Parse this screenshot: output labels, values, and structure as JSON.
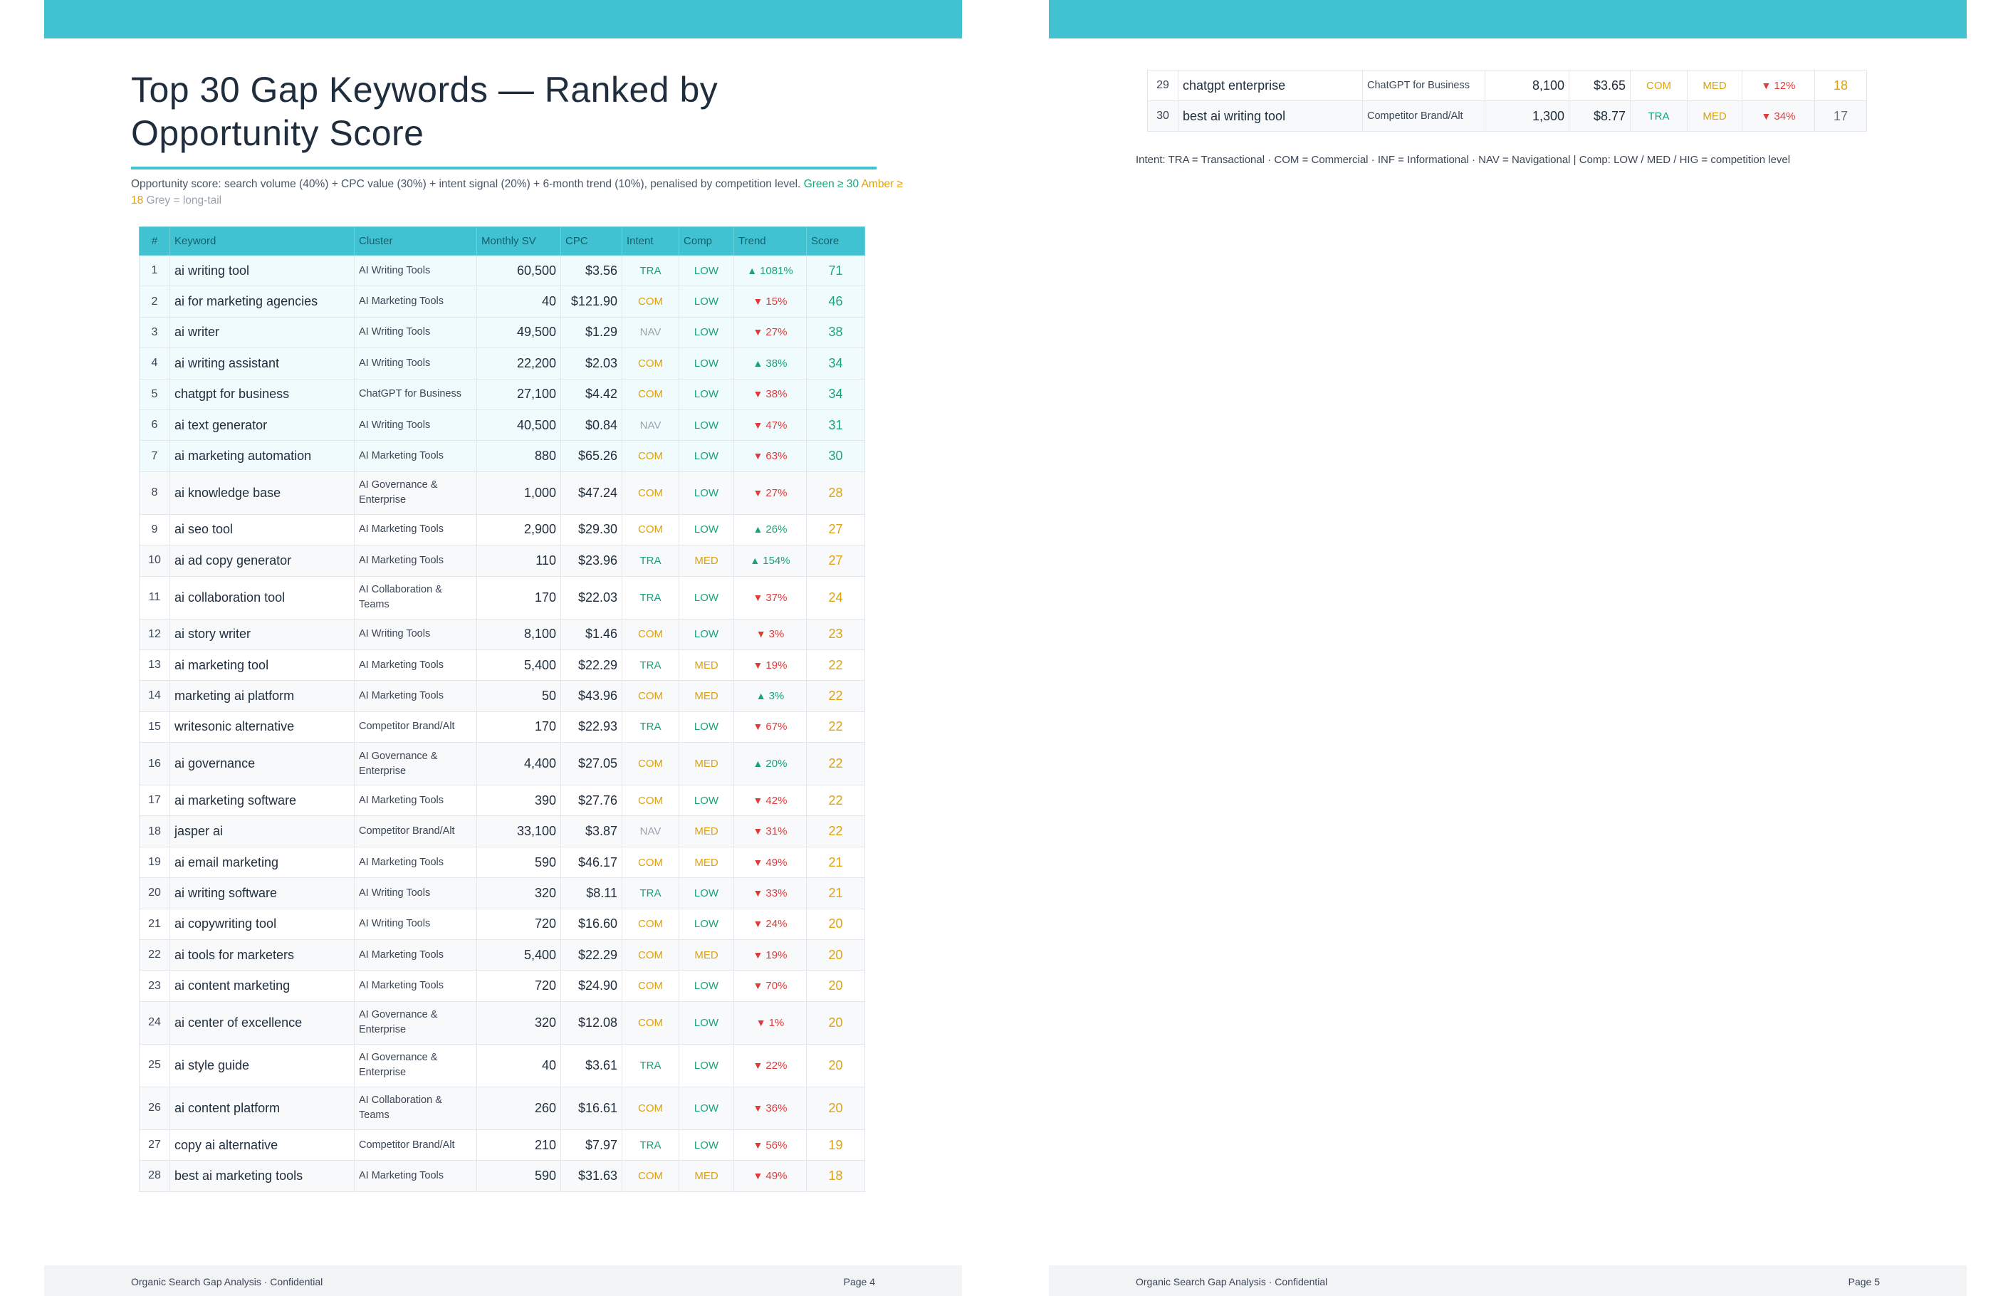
{
  "page4": {
    "title": "Top 30 Gap Keywords — Ranked by Opportunity Score",
    "note": {
      "text": "Opportunity score: search volume (40%) + CPC value (30%) + intent signal (20%) + 6-month trend (10%), penalised by competition level.",
      "green": "Green ≥ 30",
      "amber": "Amber ≥ 18",
      "grey": "Grey = long-tail"
    },
    "footer": {
      "left": "Organic Search Gap Analysis · Confidential",
      "right": "Page 4"
    }
  },
  "page5": {
    "legend": "Intent: TRA = Transactional · COM = Commercial · INF = Informational · NAV = Navigational | Comp: LOW / MED / HIG = competition level",
    "footer": {
      "left": "Organic Search Gap Analysis · Confidential",
      "right": "Page 5"
    }
  },
  "table": {
    "columns": [
      "#",
      "Keyword",
      "Cluster",
      "Monthly SV",
      "CPC",
      "Intent",
      "Comp",
      "Trend",
      "Score"
    ],
    "rows": [
      {
        "n": "1",
        "kw": "ai writing tool",
        "cl": "AI Writing Tools",
        "sv": "60,500",
        "cpc": "$3.56",
        "intent": "TRA",
        "comp": "LOW",
        "dir": "up",
        "trend": "1081%",
        "score": "71",
        "band": "green"
      },
      {
        "n": "2",
        "kw": "ai for marketing agencies",
        "cl": "AI Marketing Tools",
        "sv": "40",
        "cpc": "$121.90",
        "intent": "COM",
        "comp": "LOW",
        "dir": "down",
        "trend": "15%",
        "score": "46",
        "band": "green"
      },
      {
        "n": "3",
        "kw": "ai writer",
        "cl": "AI Writing Tools",
        "sv": "49,500",
        "cpc": "$1.29",
        "intent": "NAV",
        "comp": "LOW",
        "dir": "down",
        "trend": "27%",
        "score": "38",
        "band": "green"
      },
      {
        "n": "4",
        "kw": "ai writing assistant",
        "cl": "AI Writing Tools",
        "sv": "22,200",
        "cpc": "$2.03",
        "intent": "COM",
        "comp": "LOW",
        "dir": "up",
        "trend": "38%",
        "score": "34",
        "band": "green"
      },
      {
        "n": "5",
        "kw": "chatgpt for business",
        "cl": "ChatGPT for Business",
        "sv": "27,100",
        "cpc": "$4.42",
        "intent": "COM",
        "comp": "LOW",
        "dir": "down",
        "trend": "38%",
        "score": "34",
        "band": "green"
      },
      {
        "n": "6",
        "kw": "ai text generator",
        "cl": "AI Writing Tools",
        "sv": "40,500",
        "cpc": "$0.84",
        "intent": "NAV",
        "comp": "LOW",
        "dir": "down",
        "trend": "47%",
        "score": "31",
        "band": "green"
      },
      {
        "n": "7",
        "kw": "ai marketing automation",
        "cl": "AI Marketing Tools",
        "sv": "880",
        "cpc": "$65.26",
        "intent": "COM",
        "comp": "LOW",
        "dir": "down",
        "trend": "63%",
        "score": "30",
        "band": "green"
      },
      {
        "n": "8",
        "kw": "ai knowledge base",
        "cl": "AI Governance & Enterprise",
        "sv": "1,000",
        "cpc": "$47.24",
        "intent": "COM",
        "comp": "LOW",
        "dir": "down",
        "trend": "27%",
        "score": "28",
        "band": "amber"
      },
      {
        "n": "9",
        "kw": "ai seo tool",
        "cl": "AI Marketing Tools",
        "sv": "2,900",
        "cpc": "$29.30",
        "intent": "COM",
        "comp": "LOW",
        "dir": "up",
        "trend": "26%",
        "score": "27",
        "band": "amber"
      },
      {
        "n": "10",
        "kw": "ai ad copy generator",
        "cl": "AI Marketing Tools",
        "sv": "110",
        "cpc": "$23.96",
        "intent": "TRA",
        "comp": "MED",
        "dir": "up",
        "trend": "154%",
        "score": "27",
        "band": "amber"
      },
      {
        "n": "11",
        "kw": "ai collaboration tool",
        "cl": "AI Collaboration & Teams",
        "sv": "170",
        "cpc": "$22.03",
        "intent": "TRA",
        "comp": "LOW",
        "dir": "down",
        "trend": "37%",
        "score": "24",
        "band": "amber"
      },
      {
        "n": "12",
        "kw": "ai story writer",
        "cl": "AI Writing Tools",
        "sv": "8,100",
        "cpc": "$1.46",
        "intent": "COM",
        "comp": "LOW",
        "dir": "down",
        "trend": "3%",
        "score": "23",
        "band": "amber"
      },
      {
        "n": "13",
        "kw": "ai marketing tool",
        "cl": "AI Marketing Tools",
        "sv": "5,400",
        "cpc": "$22.29",
        "intent": "TRA",
        "comp": "MED",
        "dir": "down",
        "trend": "19%",
        "score": "22",
        "band": "amber"
      },
      {
        "n": "14",
        "kw": "marketing ai platform",
        "cl": "AI Marketing Tools",
        "sv": "50",
        "cpc": "$43.96",
        "intent": "COM",
        "comp": "MED",
        "dir": "up",
        "trend": "3%",
        "score": "22",
        "band": "amber"
      },
      {
        "n": "15",
        "kw": "writesonic alternative",
        "cl": "Competitor Brand/Alt",
        "sv": "170",
        "cpc": "$22.93",
        "intent": "TRA",
        "comp": "LOW",
        "dir": "down",
        "trend": "67%",
        "score": "22",
        "band": "amber"
      },
      {
        "n": "16",
        "kw": "ai governance",
        "cl": "AI Governance & Enterprise",
        "sv": "4,400",
        "cpc": "$27.05",
        "intent": "COM",
        "comp": "MED",
        "dir": "up",
        "trend": "20%",
        "score": "22",
        "band": "amber"
      },
      {
        "n": "17",
        "kw": "ai marketing software",
        "cl": "AI Marketing Tools",
        "sv": "390",
        "cpc": "$27.76",
        "intent": "COM",
        "comp": "LOW",
        "dir": "down",
        "trend": "42%",
        "score": "22",
        "band": "amber"
      },
      {
        "n": "18",
        "kw": "jasper ai",
        "cl": "Competitor Brand/Alt",
        "sv": "33,100",
        "cpc": "$3.87",
        "intent": "NAV",
        "comp": "MED",
        "dir": "down",
        "trend": "31%",
        "score": "22",
        "band": "amber"
      },
      {
        "n": "19",
        "kw": "ai email marketing",
        "cl": "AI Marketing Tools",
        "sv": "590",
        "cpc": "$46.17",
        "intent": "COM",
        "comp": "MED",
        "dir": "down",
        "trend": "49%",
        "score": "21",
        "band": "amber"
      },
      {
        "n": "20",
        "kw": "ai writing software",
        "cl": "AI Writing Tools",
        "sv": "320",
        "cpc": "$8.11",
        "intent": "TRA",
        "comp": "LOW",
        "dir": "down",
        "trend": "33%",
        "score": "21",
        "band": "amber"
      },
      {
        "n": "21",
        "kw": "ai copywriting tool",
        "cl": "AI Writing Tools",
        "sv": "720",
        "cpc": "$16.60",
        "intent": "COM",
        "comp": "LOW",
        "dir": "down",
        "trend": "24%",
        "score": "20",
        "band": "amber"
      },
      {
        "n": "22",
        "kw": "ai tools for marketers",
        "cl": "AI Marketing Tools",
        "sv": "5,400",
        "cpc": "$22.29",
        "intent": "COM",
        "comp": "MED",
        "dir": "down",
        "trend": "19%",
        "score": "20",
        "band": "amber"
      },
      {
        "n": "23",
        "kw": "ai content marketing",
        "cl": "AI Marketing Tools",
        "sv": "720",
        "cpc": "$24.90",
        "intent": "COM",
        "comp": "LOW",
        "dir": "down",
        "trend": "70%",
        "score": "20",
        "band": "amber"
      },
      {
        "n": "24",
        "kw": "ai center of excellence",
        "cl": "AI Governance & Enterprise",
        "sv": "320",
        "cpc": "$12.08",
        "intent": "COM",
        "comp": "LOW",
        "dir": "down",
        "trend": "1%",
        "score": "20",
        "band": "amber"
      },
      {
        "n": "25",
        "kw": "ai style guide",
        "cl": "AI Governance & Enterprise",
        "sv": "40",
        "cpc": "$3.61",
        "intent": "TRA",
        "comp": "LOW",
        "dir": "down",
        "trend": "22%",
        "score": "20",
        "band": "amber"
      },
      {
        "n": "26",
        "kw": "ai content platform",
        "cl": "AI Collaboration & Teams",
        "sv": "260",
        "cpc": "$16.61",
        "intent": "COM",
        "comp": "LOW",
        "dir": "down",
        "trend": "36%",
        "score": "20",
        "band": "amber"
      },
      {
        "n": "27",
        "kw": "copy ai alternative",
        "cl": "Competitor Brand/Alt",
        "sv": "210",
        "cpc": "$7.97",
        "intent": "TRA",
        "comp": "LOW",
        "dir": "down",
        "trend": "56%",
        "score": "19",
        "band": "amber"
      },
      {
        "n": "28",
        "kw": "best ai marketing tools",
        "cl": "AI Marketing Tools",
        "sv": "590",
        "cpc": "$31.63",
        "intent": "COM",
        "comp": "MED",
        "dir": "down",
        "trend": "49%",
        "score": "18",
        "band": "amber"
      }
    ],
    "rows_cont": [
      {
        "n": "29",
        "kw": "chatgpt enterprise",
        "cl": "ChatGPT for Business",
        "sv": "8,100",
        "cpc": "$3.65",
        "intent": "COM",
        "comp": "MED",
        "dir": "down",
        "trend": "12%",
        "score": "18",
        "band": "amber"
      },
      {
        "n": "30",
        "kw": "best ai writing tool",
        "cl": "Competitor Brand/Alt",
        "sv": "1,300",
        "cpc": "$8.77",
        "intent": "TRA",
        "comp": "MED",
        "dir": "down",
        "trend": "34%",
        "score": "17",
        "band": "grey"
      }
    ]
  }
}
